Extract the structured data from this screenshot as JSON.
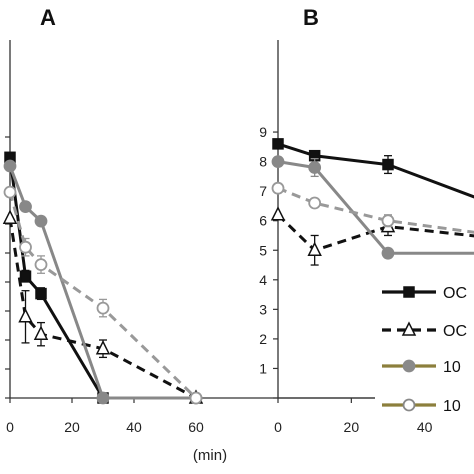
{
  "chart_data": [
    {
      "panel": "A",
      "type": "line",
      "xlim": [
        0,
        60
      ],
      "ylim": [
        0,
        9
      ],
      "x_ticks": [
        "0",
        "20",
        "40",
        "60"
      ],
      "x_unit": "(min)",
      "series": [
        {
          "key": "s1",
          "color": "#111111",
          "dash": "solid",
          "marker": "square-filled",
          "x": [
            0,
            5,
            10,
            30
          ],
          "y": [
            8.3,
            4.2,
            3.6,
            0
          ],
          "err": [
            0,
            0.2,
            0.2,
            0
          ]
        },
        {
          "key": "s2",
          "color": "#111111",
          "dash": "dashed",
          "marker": "triangle-open",
          "x": [
            0,
            5,
            10,
            30,
            60
          ],
          "y": [
            6.2,
            2.8,
            2.2,
            1.7,
            0
          ],
          "err": [
            0,
            0.9,
            0.4,
            0.3,
            0
          ]
        },
        {
          "key": "s3",
          "color": "#888888",
          "dash": "solid",
          "marker": "circle-filled",
          "x": [
            0,
            5,
            10,
            30,
            60
          ],
          "y": [
            8.0,
            6.6,
            6.1,
            0,
            0
          ],
          "err": [
            0,
            0,
            0,
            0,
            0
          ]
        },
        {
          "key": "s4",
          "color": "#999999",
          "dash": "dashed",
          "marker": "circle-open",
          "x": [
            0,
            5,
            10,
            30,
            60
          ],
          "y": [
            7.1,
            5.2,
            4.6,
            3.1,
            0
          ],
          "err": [
            0,
            0.3,
            0.3,
            0.3,
            0
          ]
        }
      ]
    },
    {
      "panel": "B",
      "type": "line",
      "xlim": [
        0,
        60
      ],
      "ylim": [
        0,
        9
      ],
      "x_ticks": [
        "0",
        "20",
        "40"
      ],
      "y_ticks": [
        "1",
        "2",
        "3",
        "4",
        "5",
        "6",
        "7",
        "8",
        "9"
      ],
      "series": [
        {
          "key": "s1",
          "color": "#111111",
          "dash": "solid",
          "marker": "square-filled",
          "x": [
            0,
            10,
            30,
            60
          ],
          "y": [
            8.6,
            8.2,
            7.9,
            6.5
          ],
          "err": [
            0,
            0.1,
            0.3,
            0
          ]
        },
        {
          "key": "s2",
          "color": "#111111",
          "dash": "dashed",
          "marker": "triangle-open",
          "x": [
            0,
            10,
            30,
            60
          ],
          "y": [
            6.2,
            5.0,
            5.8,
            5.4
          ],
          "err": [
            0,
            0.5,
            0.3,
            0
          ]
        },
        {
          "key": "s3",
          "color": "#888888",
          "dash": "solid",
          "marker": "circle-filled",
          "x": [
            0,
            10,
            30,
            60
          ],
          "y": [
            8.0,
            7.8,
            4.9,
            4.9
          ],
          "err": [
            0,
            0.3,
            0,
            0
          ]
        },
        {
          "key": "s4",
          "color": "#999999",
          "dash": "dashed",
          "marker": "circle-open",
          "x": [
            0,
            10,
            30,
            60
          ],
          "y": [
            7.1,
            6.6,
            6.0,
            5.5
          ],
          "err": [
            0,
            0.1,
            0.2,
            0
          ]
        }
      ]
    }
  ],
  "legend": {
    "entries": [
      {
        "series": "s1",
        "label": "OC",
        "line_color": "#111111",
        "dash": "solid",
        "marker": "square-filled"
      },
      {
        "series": "s2",
        "label": "OC",
        "line_color": "#111111",
        "dash": "dashed",
        "marker": "triangle-open"
      },
      {
        "series": "s3",
        "label": "10",
        "line_color": "#8c7f3c",
        "dash": "solid",
        "marker": "circle-filled"
      },
      {
        "series": "s4",
        "label": "10",
        "line_color": "#8c7f3c",
        "dash": "solid",
        "marker": "circle-open"
      }
    ]
  }
}
